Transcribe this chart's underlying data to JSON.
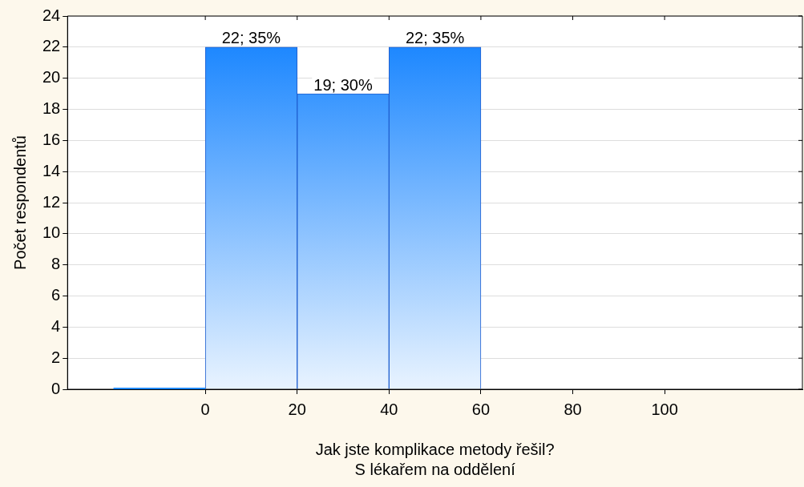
{
  "chart_data": {
    "type": "histogram",
    "xlabel": "Jak jste komplikace metody řešil?\nS lékařem na oddělení",
    "ylabel": "Počet respondentů",
    "bins": [
      -20,
      0,
      20,
      40,
      60
    ],
    "values": [
      0,
      22,
      19,
      22
    ],
    "value_labels": [
      null,
      "22; 35%",
      "19; 30%",
      "22; 35%"
    ],
    "color": "#1e88ff",
    "xlim": [
      -30,
      130
    ],
    "xticks": [
      0,
      20,
      40,
      60,
      80,
      100
    ],
    "ylim": [
      0,
      24
    ],
    "yticks": [
      0,
      2,
      4,
      6,
      8,
      10,
      12,
      14,
      16,
      18,
      20,
      22,
      24
    ],
    "grid": "y"
  }
}
